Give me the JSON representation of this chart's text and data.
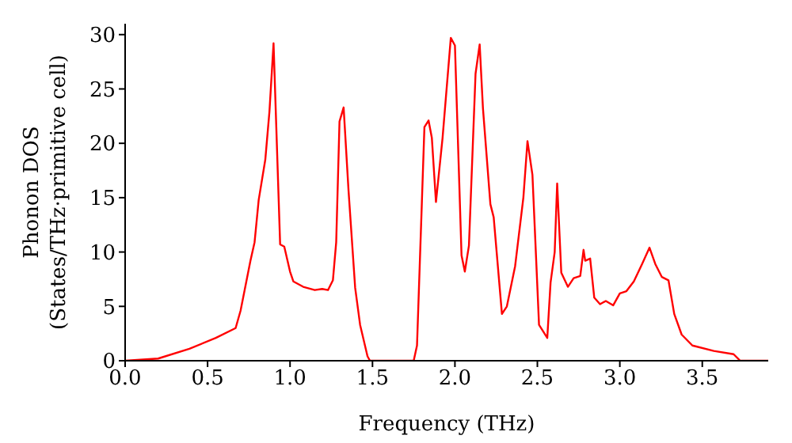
{
  "chart_data": {
    "type": "line",
    "xlabel": "Frequency (THz)",
    "ylabel": "Phonon DOS\n(States/THz·primitive cell)",
    "xlim": [
      0,
      3.9
    ],
    "ylim": [
      0,
      31
    ],
    "xticks": [
      {
        "value": 0,
        "label": "0.0"
      },
      {
        "value": 0.5,
        "label": "0.5"
      },
      {
        "value": 1,
        "label": "1.0"
      },
      {
        "value": 1.5,
        "label": "1.5"
      },
      {
        "value": 2,
        "label": "2.0"
      },
      {
        "value": 2.5,
        "label": "2.5"
      },
      {
        "value": 3,
        "label": "3.0"
      },
      {
        "value": 3.5,
        "label": "3.5"
      }
    ],
    "yticks": [
      0,
      5,
      10,
      15,
      20,
      25,
      30
    ],
    "grid": false,
    "legend": false,
    "marker": "none",
    "line_style": "solid",
    "series": [
      {
        "color": "#ff0000",
        "x": [
          0,
          0.2,
          0.39,
          0.55,
          0.67,
          0.7,
          0.76,
          0.785,
          0.81,
          0.85,
          0.875,
          0.9,
          0.94,
          0.965,
          1.0,
          1.02,
          1.08,
          1.15,
          1.195,
          1.23,
          1.26,
          1.28,
          1.3,
          1.325,
          1.355,
          1.395,
          1.425,
          1.47,
          1.485,
          1.75,
          1.77,
          1.815,
          1.84,
          1.86,
          1.885,
          1.925,
          1.975,
          2.0,
          2.04,
          2.06,
          2.085,
          2.125,
          2.15,
          2.17,
          2.215,
          2.235,
          2.285,
          2.315,
          2.365,
          2.415,
          2.44,
          2.47,
          2.51,
          2.56,
          2.58,
          2.605,
          2.62,
          2.645,
          2.685,
          2.72,
          2.76,
          2.78,
          2.79,
          2.82,
          2.845,
          2.88,
          2.915,
          2.96,
          3.0,
          3.04,
          3.085,
          3.135,
          3.18,
          3.215,
          3.255,
          3.295,
          3.33,
          3.375,
          3.44,
          3.57,
          3.69,
          3.73,
          3.9
        ],
        "values": [
          0,
          0.2,
          1.1,
          2.1,
          3.0,
          4.6,
          9.2,
          10.9,
          14.8,
          18.5,
          22.9,
          29.2,
          10.7,
          10.5,
          8.2,
          7.3,
          6.8,
          6.5,
          6.6,
          6.5,
          7.4,
          10.9,
          22.0,
          23.3,
          15.6,
          6.7,
          3.3,
          0.4,
          0,
          0,
          1.4,
          21.5,
          22.1,
          20.5,
          14.6,
          20.5,
          29.7,
          29.0,
          9.7,
          8.2,
          10.6,
          26.4,
          29.1,
          23.2,
          14.4,
          13.2,
          4.3,
          5.0,
          8.7,
          15.0,
          20.2,
          17.1,
          3.3,
          2.1,
          7.2,
          10.0,
          16.3,
          8.1,
          6.8,
          7.6,
          7.8,
          10.2,
          9.2,
          9.4,
          5.8,
          5.2,
          5.5,
          5.1,
          6.2,
          6.4,
          7.3,
          8.9,
          10.4,
          8.9,
          7.7,
          7.4,
          4.3,
          2.4,
          1.4,
          0.9,
          0.6,
          0,
          0
        ]
      }
    ]
  }
}
